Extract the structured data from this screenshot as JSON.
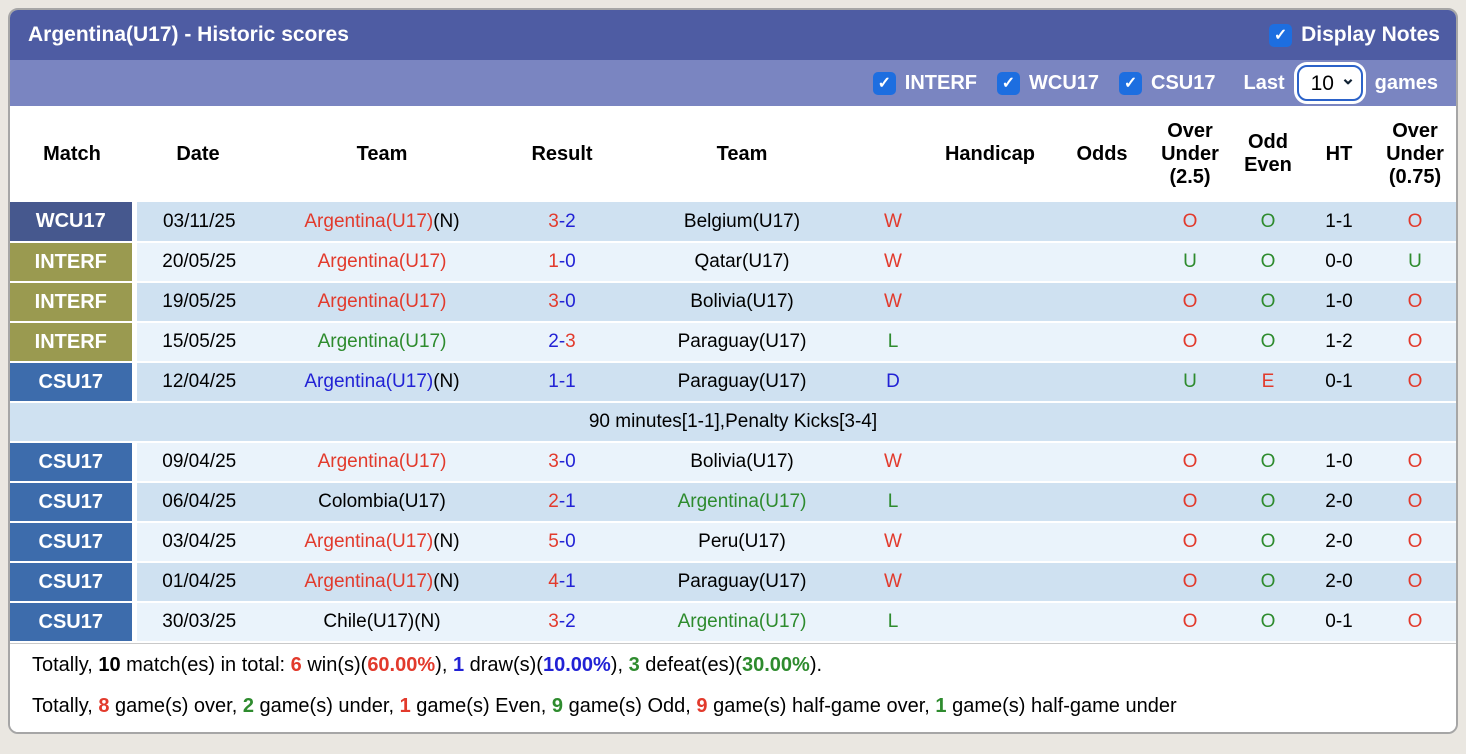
{
  "title": "Argentina(U17) - Historic scores",
  "display_notes_label": "Display Notes",
  "filters": {
    "competitions": [
      "INTERF",
      "WCU17",
      "CSU17"
    ],
    "last_label": "Last",
    "games_label": "games",
    "last_games_value": "10"
  },
  "table": {
    "headers": [
      "Match",
      "Date",
      "Team",
      "Result",
      "Team",
      "",
      "Handicap",
      "Odds",
      "Over\nUnder\n(2.5)",
      "Odd\nEven",
      "HT",
      "Over\nUnder\n(0.75)"
    ],
    "rows": [
      {
        "league": "WCU17",
        "shade": "dark",
        "date": "03/11/25",
        "home": {
          "text": "Argentina(U17)",
          "color": "red",
          "suffix": "(N)"
        },
        "result": {
          "home": "3",
          "home_color": "red",
          "dash_color": "blue",
          "away": "2",
          "away_color": "blue"
        },
        "away": {
          "text": "Belgium(U17)",
          "color": "black",
          "suffix": ""
        },
        "wdl": {
          "text": "W",
          "color": "red"
        },
        "handicap": "",
        "odds": "",
        "ou25": {
          "text": "O",
          "color": "red"
        },
        "oe": {
          "text": "O",
          "color": "green"
        },
        "ht": "1-1",
        "ou075": {
          "text": "O",
          "color": "red"
        },
        "note": null
      },
      {
        "league": "INTERF",
        "shade": "light",
        "date": "20/05/25",
        "home": {
          "text": "Argentina(U17)",
          "color": "red",
          "suffix": ""
        },
        "result": {
          "home": "1",
          "home_color": "red",
          "dash_color": "blue",
          "away": "0",
          "away_color": "blue"
        },
        "away": {
          "text": "Qatar(U17)",
          "color": "black",
          "suffix": ""
        },
        "wdl": {
          "text": "W",
          "color": "red"
        },
        "handicap": "",
        "odds": "",
        "ou25": {
          "text": "U",
          "color": "green"
        },
        "oe": {
          "text": "O",
          "color": "green"
        },
        "ht": "0-0",
        "ou075": {
          "text": "U",
          "color": "green"
        },
        "note": null
      },
      {
        "league": "INTERF",
        "shade": "dark",
        "date": "19/05/25",
        "home": {
          "text": "Argentina(U17)",
          "color": "red",
          "suffix": ""
        },
        "result": {
          "home": "3",
          "home_color": "red",
          "dash_color": "blue",
          "away": "0",
          "away_color": "blue"
        },
        "away": {
          "text": "Bolivia(U17)",
          "color": "black",
          "suffix": ""
        },
        "wdl": {
          "text": "W",
          "color": "red"
        },
        "handicap": "",
        "odds": "",
        "ou25": {
          "text": "O",
          "color": "red"
        },
        "oe": {
          "text": "O",
          "color": "green"
        },
        "ht": "1-0",
        "ou075": {
          "text": "O",
          "color": "red"
        },
        "note": null
      },
      {
        "league": "INTERF",
        "shade": "light",
        "date": "15/05/25",
        "home": {
          "text": "Argentina(U17)",
          "color": "green",
          "suffix": ""
        },
        "result": {
          "home": "2",
          "home_color": "blue",
          "dash_color": "blue",
          "away": "3",
          "away_color": "red"
        },
        "away": {
          "text": "Paraguay(U17)",
          "color": "black",
          "suffix": ""
        },
        "wdl": {
          "text": "L",
          "color": "green"
        },
        "handicap": "",
        "odds": "",
        "ou25": {
          "text": "O",
          "color": "red"
        },
        "oe": {
          "text": "O",
          "color": "green"
        },
        "ht": "1-2",
        "ou075": {
          "text": "O",
          "color": "red"
        },
        "note": null
      },
      {
        "league": "CSU17",
        "shade": "dark",
        "date": "12/04/25",
        "home": {
          "text": "Argentina(U17)",
          "color": "blue",
          "suffix": "(N)"
        },
        "result": {
          "home": "1",
          "home_color": "blue",
          "dash_color": "blue",
          "away": "1",
          "away_color": "blue"
        },
        "away": {
          "text": "Paraguay(U17)",
          "color": "black",
          "suffix": ""
        },
        "wdl": {
          "text": "D",
          "color": "blue"
        },
        "handicap": "",
        "odds": "",
        "ou25": {
          "text": "U",
          "color": "green"
        },
        "oe": {
          "text": "E",
          "color": "red"
        },
        "ht": "0-1",
        "ou075": {
          "text": "O",
          "color": "red"
        },
        "note": "90 minutes[1-1],Penalty Kicks[3-4]"
      },
      {
        "league": "CSU17",
        "shade": "light",
        "date": "09/04/25",
        "home": {
          "text": "Argentina(U17)",
          "color": "red",
          "suffix": ""
        },
        "result": {
          "home": "3",
          "home_color": "red",
          "dash_color": "blue",
          "away": "0",
          "away_color": "blue"
        },
        "away": {
          "text": "Bolivia(U17)",
          "color": "black",
          "suffix": ""
        },
        "wdl": {
          "text": "W",
          "color": "red"
        },
        "handicap": "",
        "odds": "",
        "ou25": {
          "text": "O",
          "color": "red"
        },
        "oe": {
          "text": "O",
          "color": "green"
        },
        "ht": "1-0",
        "ou075": {
          "text": "O",
          "color": "red"
        },
        "note": null
      },
      {
        "league": "CSU17",
        "shade": "dark",
        "date": "06/04/25",
        "home": {
          "text": "Colombia(U17)",
          "color": "black",
          "suffix": ""
        },
        "result": {
          "home": "2",
          "home_color": "red",
          "dash_color": "blue",
          "away": "1",
          "away_color": "blue"
        },
        "away": {
          "text": "Argentina(U17)",
          "color": "green",
          "suffix": ""
        },
        "wdl": {
          "text": "L",
          "color": "green"
        },
        "handicap": "",
        "odds": "",
        "ou25": {
          "text": "O",
          "color": "red"
        },
        "oe": {
          "text": "O",
          "color": "green"
        },
        "ht": "2-0",
        "ou075": {
          "text": "O",
          "color": "red"
        },
        "note": null
      },
      {
        "league": "CSU17",
        "shade": "light",
        "date": "03/04/25",
        "home": {
          "text": "Argentina(U17)",
          "color": "red",
          "suffix": "(N)"
        },
        "result": {
          "home": "5",
          "home_color": "red",
          "dash_color": "blue",
          "away": "0",
          "away_color": "blue"
        },
        "away": {
          "text": "Peru(U17)",
          "color": "black",
          "suffix": ""
        },
        "wdl": {
          "text": "W",
          "color": "red"
        },
        "handicap": "",
        "odds": "",
        "ou25": {
          "text": "O",
          "color": "red"
        },
        "oe": {
          "text": "O",
          "color": "green"
        },
        "ht": "2-0",
        "ou075": {
          "text": "O",
          "color": "red"
        },
        "note": null
      },
      {
        "league": "CSU17",
        "shade": "dark",
        "date": "01/04/25",
        "home": {
          "text": "Argentina(U17)",
          "color": "red",
          "suffix": "(N)"
        },
        "result": {
          "home": "4",
          "home_color": "red",
          "dash_color": "blue",
          "away": "1",
          "away_color": "blue"
        },
        "away": {
          "text": "Paraguay(U17)",
          "color": "black",
          "suffix": ""
        },
        "wdl": {
          "text": "W",
          "color": "red"
        },
        "handicap": "",
        "odds": "",
        "ou25": {
          "text": "O",
          "color": "red"
        },
        "oe": {
          "text": "O",
          "color": "green"
        },
        "ht": "2-0",
        "ou075": {
          "text": "O",
          "color": "red"
        },
        "note": null
      },
      {
        "league": "CSU17",
        "shade": "light",
        "date": "30/03/25",
        "home": {
          "text": "Chile(U17)(N)",
          "color": "black",
          "suffix": ""
        },
        "result": {
          "home": "3",
          "home_color": "red",
          "dash_color": "blue",
          "away": "2",
          "away_color": "blue"
        },
        "away": {
          "text": "Argentina(U17)",
          "color": "green",
          "suffix": ""
        },
        "wdl": {
          "text": "L",
          "color": "green"
        },
        "handicap": "",
        "odds": "",
        "ou25": {
          "text": "O",
          "color": "red"
        },
        "oe": {
          "text": "O",
          "color": "green"
        },
        "ht": "0-1",
        "ou075": {
          "text": "O",
          "color": "red"
        },
        "note": null
      }
    ]
  },
  "summary": {
    "line1": [
      {
        "t": "Totally, "
      },
      {
        "t": "10",
        "c": "black",
        "b": true
      },
      {
        "t": " match(es) in total: "
      },
      {
        "t": "6",
        "c": "red",
        "b": true
      },
      {
        "t": " win(s)("
      },
      {
        "t": "60.00%",
        "c": "red",
        "b": true
      },
      {
        "t": "), "
      },
      {
        "t": "1",
        "c": "blue",
        "b": true
      },
      {
        "t": " draw(s)("
      },
      {
        "t": "10.00%",
        "c": "blue",
        "b": true
      },
      {
        "t": "), "
      },
      {
        "t": "3",
        "c": "green",
        "b": true
      },
      {
        "t": " defeat(es)("
      },
      {
        "t": "30.00%",
        "c": "green",
        "b": true
      },
      {
        "t": ")."
      }
    ],
    "line2": [
      {
        "t": "Totally, "
      },
      {
        "t": "8",
        "c": "red",
        "b": true
      },
      {
        "t": " game(s) over, "
      },
      {
        "t": "2",
        "c": "green",
        "b": true
      },
      {
        "t": " game(s) under, "
      },
      {
        "t": "1",
        "c": "red",
        "b": true
      },
      {
        "t": " game(s) Even, "
      },
      {
        "t": "9",
        "c": "green",
        "b": true
      },
      {
        "t": " game(s) Odd, "
      },
      {
        "t": "9",
        "c": "red",
        "b": true
      },
      {
        "t": " game(s) half-game over, "
      },
      {
        "t": "1",
        "c": "green",
        "b": true
      },
      {
        "t": " game(s) half-game under"
      }
    ]
  },
  "colors": {
    "title_bar": "#4e5ca3",
    "filter_bar": "#7a85c1",
    "checkbox_blue": "#1d6ee0",
    "badge_wcu17": "#46588e",
    "badge_interf": "#9a9a50",
    "badge_csu17": "#3d6cac",
    "row_dark": "#cfe1f1",
    "row_light": "#eaf3fb",
    "red": "#e23a2c",
    "green": "#2e8b2e",
    "blue": "#2222d5",
    "black": "#000000"
  }
}
